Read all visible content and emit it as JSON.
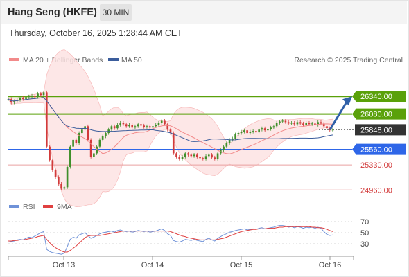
{
  "header": {
    "title": "Hang Seng (HKFE)",
    "period": "30 MIN"
  },
  "datetime": "Thursday, October 16, 2025 1:28:44 AM CET",
  "legend": {
    "ma20_label": "MA 20 + Bollinger Bands",
    "ma50_label": "MA 50",
    "credit": "Research © 2025 Trading Central"
  },
  "rsi_legend": {
    "rsi_label": "RSI",
    "ma9_label": "9MA"
  },
  "colors": {
    "ma20": "#f28a8a",
    "ma50": "#3b5d9c",
    "band_fill": "#fde3e3",
    "up": "#3f8f2a",
    "down": "#d23a3a",
    "resistance": "#5aa10a",
    "support": "#2e66e8",
    "support_minor": "#e9a0a0",
    "last_price": "#333333",
    "rsi": "#6f92d8",
    "rsi_ma": "#e04040",
    "arrow": "#2f60a8"
  },
  "chart_data": [
    {
      "type": "candlestick",
      "title": "Hang Seng (HKFE)",
      "timeframe": "30 MIN",
      "y_range": [
        24820,
        26700
      ],
      "x_labels": [
        "Oct 13",
        "Oct 14",
        "Oct 15",
        "Oct 16"
      ],
      "levels": [
        {
          "value": 26340,
          "label": "26340.00",
          "kind": "resistance"
        },
        {
          "value": 26080,
          "label": "26080.00",
          "kind": "resistance"
        },
        {
          "value": 25848,
          "label": "25848.00",
          "kind": "last"
        },
        {
          "value": 25560,
          "label": "25560.00",
          "kind": "support"
        },
        {
          "value": 25330,
          "label": "25330.00",
          "kind": "support_minor"
        },
        {
          "value": 24960,
          "label": "24960.00",
          "kind": "support_minor"
        }
      ],
      "closes": [
        26300,
        26250,
        26270,
        26290,
        26320,
        26300,
        26330,
        26340,
        26350,
        26330,
        26380,
        26360,
        26400,
        25600,
        25400,
        25250,
        25150,
        25050,
        24980,
        25000,
        25300,
        25600,
        25700,
        25650,
        25800,
        25850,
        25900,
        25700,
        25450,
        25500,
        25600,
        25700,
        25750,
        25800,
        25850,
        25900,
        25870,
        25920,
        25950,
        25930,
        25900,
        25920,
        25880,
        25900,
        25930,
        25910,
        25890,
        25900,
        25880,
        25900,
        25920,
        25950,
        25980,
        25930,
        25850,
        25800,
        25500,
        25450,
        25420,
        25450,
        25500,
        25480,
        25460,
        25480,
        25450,
        25430,
        25420,
        25460,
        25480,
        25440,
        25420,
        25500,
        25550,
        25600,
        25650,
        25700,
        25720,
        25780,
        25800,
        25820,
        25840,
        25800,
        25820,
        25830,
        25810,
        25850,
        25870,
        25840,
        25860,
        25880,
        25900,
        25950,
        25970,
        25980,
        25960,
        25940,
        25950,
        25930,
        25960,
        25940,
        25920,
        25950,
        25930,
        25940,
        25920,
        25960,
        25940,
        25900,
        25870,
        25840,
        25848
      ]
    },
    {
      "type": "line",
      "title": "RSI",
      "y_ticks": [
        30,
        50,
        70
      ],
      "series": [
        {
          "name": "RSI",
          "values": [
            33,
            34,
            35,
            37,
            38,
            37,
            40,
            42,
            41,
            44,
            47,
            50,
            52,
            20,
            16,
            14,
            13,
            12,
            11,
            13,
            25,
            38,
            42,
            40,
            46,
            48,
            50,
            45,
            40,
            42,
            45,
            48,
            50,
            51,
            52,
            53,
            51,
            54,
            55,
            53,
            52,
            53,
            51,
            52,
            54,
            53,
            52,
            53,
            51,
            52,
            53,
            55,
            57,
            54,
            48,
            45,
            36,
            34,
            33,
            35,
            38,
            37,
            36,
            38,
            36,
            35,
            34,
            38,
            40,
            37,
            35,
            40,
            43,
            46,
            48,
            51,
            52,
            54,
            55,
            56,
            57,
            55,
            56,
            57,
            56,
            58,
            59,
            57,
            58,
            59,
            60,
            62,
            63,
            63,
            62,
            60,
            61,
            59,
            61,
            60,
            58,
            60,
            59,
            60,
            58,
            60,
            58,
            52,
            47,
            45,
            46
          ]
        },
        {
          "name": "9MA",
          "values": [
            35,
            35,
            36,
            36,
            37,
            37,
            38,
            39,
            40,
            41,
            43,
            44,
            45,
            38,
            32,
            27,
            23,
            20,
            17,
            15,
            15,
            18,
            22,
            26,
            31,
            36,
            41,
            44,
            45,
            45,
            45,
            45,
            46,
            47,
            48,
            49,
            50,
            51,
            52,
            53,
            53,
            53,
            53,
            53,
            53,
            53,
            53,
            53,
            53,
            53,
            53,
            53,
            53,
            53,
            53,
            52,
            50,
            48,
            46,
            44,
            43,
            41,
            40,
            39,
            38,
            37,
            37,
            37,
            37,
            37,
            37,
            38,
            39,
            40,
            42,
            44,
            46,
            48,
            50,
            52,
            53,
            54,
            55,
            56,
            56,
            57,
            57,
            57,
            58,
            58,
            58,
            59,
            60,
            60,
            61,
            61,
            61,
            61,
            61,
            61,
            61,
            61,
            61,
            60,
            60,
            59,
            59,
            58,
            56,
            54,
            52
          ]
        }
      ]
    }
  ]
}
